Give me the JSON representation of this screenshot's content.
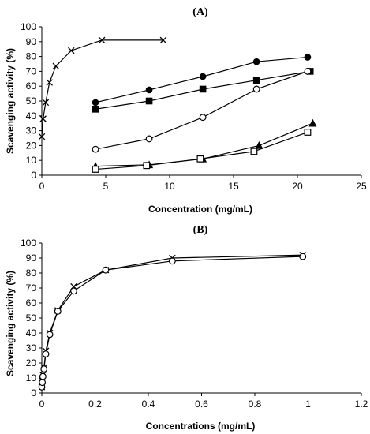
{
  "chart_data": [
    {
      "type": "scatter",
      "title": "(A)",
      "xlabel": "Concentration (mg/mL)",
      "ylabel": "Scavenging activity (%)",
      "xlim": [
        0,
        25
      ],
      "ylim": [
        0,
        100
      ],
      "xticks": [
        0,
        5,
        10,
        15,
        20,
        25
      ],
      "yticks": [
        0,
        10,
        20,
        30,
        40,
        50,
        60,
        70,
        80,
        90,
        100
      ],
      "grid": false,
      "legend": "none",
      "series": [
        {
          "marker": "x",
          "x": [
            0.0,
            0.1,
            0.3,
            0.6,
            1.1,
            2.3,
            4.7,
            9.5
          ],
          "y": [
            26,
            38,
            49,
            62.5,
            73.5,
            84,
            91,
            91
          ]
        },
        {
          "marker": "filled-circle",
          "x": [
            4.2,
            8.4,
            12.6,
            16.8,
            20.8
          ],
          "y": [
            49,
            57.5,
            66.5,
            76.5,
            79.5
          ]
        },
        {
          "marker": "filled-square",
          "x": [
            4.2,
            8.4,
            12.6,
            16.8,
            21.0
          ],
          "y": [
            44.5,
            50,
            58,
            64,
            70
          ]
        },
        {
          "marker": "open-circle",
          "x": [
            4.2,
            8.4,
            12.6,
            16.8,
            20.8
          ],
          "y": [
            17.5,
            24.5,
            39,
            58,
            70
          ]
        },
        {
          "marker": "filled-triangle",
          "x": [
            4.2,
            8.4,
            12.6,
            17.0,
            21.2
          ],
          "y": [
            6,
            7,
            11,
            20,
            35
          ]
        },
        {
          "marker": "open-square",
          "x": [
            4.2,
            8.2,
            12.4,
            16.6,
            20.8
          ],
          "y": [
            4,
            6.5,
            11,
            16,
            29
          ]
        }
      ]
    },
    {
      "type": "scatter",
      "title": "(B)",
      "xlabel": "Concentrations (mg/mL)",
      "ylabel": "Scavenging activity (%)",
      "xlim": [
        0,
        1.2
      ],
      "ylim": [
        0,
        100
      ],
      "xticks": [
        0,
        0.2,
        0.4,
        0.6,
        0.8,
        1,
        1.2
      ],
      "yticks": [
        0,
        10,
        20,
        30,
        40,
        50,
        60,
        70,
        80,
        90,
        100
      ],
      "grid": false,
      "legend": "none",
      "series": [
        {
          "marker": "x",
          "x": [
            0.0,
            0.002,
            0.004,
            0.008,
            0.015,
            0.03,
            0.06,
            0.12,
            0.24,
            0.49,
            0.98
          ],
          "y": [
            4,
            8,
            12,
            17,
            28,
            40,
            55,
            71,
            82,
            90,
            92
          ]
        },
        {
          "marker": "open-circle",
          "x": [
            0.0,
            0.002,
            0.004,
            0.008,
            0.015,
            0.03,
            0.06,
            0.12,
            0.24,
            0.49,
            0.98
          ],
          "y": [
            4,
            7,
            11,
            16,
            26,
            39,
            54.5,
            68,
            82,
            88,
            91
          ]
        }
      ]
    }
  ]
}
